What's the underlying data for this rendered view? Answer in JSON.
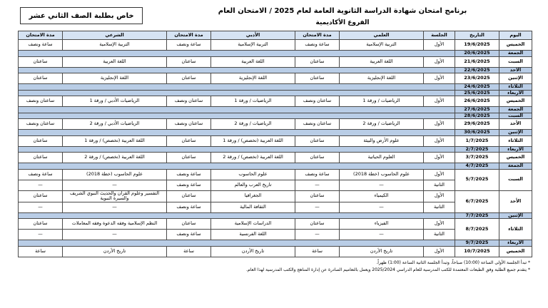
{
  "header": {
    "badge": "خاص بطلبة الصف الثاني عشر",
    "title": "برنامج امتحان شهادة الدراسة الثانوية العامة لعام 2025 / الامتحان العام",
    "subtitle": "الفروع الأكاديمية"
  },
  "table": {
    "columns": [
      "اليوم",
      "التاريخ",
      "الجلسة",
      "العلمي",
      "مدة الامتحان",
      "الأدبي",
      "مدة الامتحان",
      "الشرعي",
      "مدة الامتحان"
    ],
    "rows": [
      {
        "day": "الخميس",
        "date": "19/6/2025",
        "sessions": [
          [
            "الأول",
            "التربية الإسلامية",
            "ساعة ونصف",
            "التربية الإسلامية",
            "ساعة ونصف",
            "التربية الإسلامية",
            "ساعة ونصف"
          ]
        ]
      },
      {
        "day": "الجمعة",
        "date": "20/6/2025",
        "sessions": []
      },
      {
        "day": "السبت",
        "date": "21/6/2025",
        "sessions": [
          [
            "الأول",
            "اللغة العربية",
            "ساعتان",
            "اللغة العربية",
            "ساعتان",
            "اللغة العربية",
            "ساعتان"
          ]
        ]
      },
      {
        "day": "الأحد",
        "date": "22/6/2025",
        "sessions": []
      },
      {
        "day": "الإثنين",
        "date": "23/6/2025",
        "sessions": [
          [
            "الأول",
            "اللغة الإنجليزية",
            "ساعتان",
            "اللغة الإنجليزية",
            "ساعتان",
            "اللغة الإنجليزية",
            "ساعتان"
          ]
        ]
      },
      {
        "day": "الثلاثاء",
        "date": "24/6/2025",
        "sessions": []
      },
      {
        "day": "الأربعاء",
        "date": "25/6/2025",
        "sessions": []
      },
      {
        "day": "الخميس",
        "date": "26/6/2025",
        "sessions": [
          [
            "الأول",
            "الرياضيات / ورقة 1",
            "ساعتان ونصف",
            "الرياضيات / ورقة 1",
            "ساعتان ونصف",
            "الرياضيات الأدبي / ورقة 1",
            "ساعتان ونصف"
          ]
        ]
      },
      {
        "day": "الجمعة",
        "date": "27/6/2025",
        "sessions": []
      },
      {
        "day": "السبت",
        "date": "28/6/2025",
        "sessions": []
      },
      {
        "day": "الأحد",
        "date": "29/6/2025",
        "sessions": [
          [
            "الأول",
            "الرياضيات / ورقة 2",
            "ساعتان ونصف",
            "الرياضيات / ورقة 2",
            "ساعتان ونصف",
            "الرياضيات الأدبي / ورقة 2",
            "ساعتان ونصف"
          ]
        ]
      },
      {
        "day": "الإثنين",
        "date": "30/6/2025",
        "sessions": []
      },
      {
        "day": "الثلاثاء",
        "date": "1/7/2025",
        "sessions": [
          [
            "الأول",
            "علوم الأرض والبيئة",
            "ساعتان",
            "اللغة العربية (تخصص) / ورقة 1",
            "ساعتان",
            "اللغة العربية (تخصص) / ورقة 1",
            "ساعتان"
          ]
        ]
      },
      {
        "day": "الأربعاء",
        "date": "2/7/2025",
        "sessions": []
      },
      {
        "day": "الخميس",
        "date": "3/7/2025",
        "sessions": [
          [
            "الأول",
            "العلوم الحياتية",
            "ساعتان",
            "اللغة العربية (تخصص) / ورقة 2",
            "ساعتان",
            "اللغة العربية (تخصص) / ورقة 2",
            "ساعتان"
          ]
        ]
      },
      {
        "day": "الجمعة",
        "date": "4/7/2025",
        "sessions": []
      },
      {
        "day": "السبت",
        "date": "5/7/2025",
        "sessions": [
          [
            "الأول",
            "علوم الحاسوب (خطة 2018)",
            "ساعة ونصف",
            "علوم الحاسوب",
            "ساعة ونصف",
            "علوم الحاسوب (خطة 2018)",
            "ساعة ونصف"
          ],
          [
            "الثانية",
            "—",
            "—",
            "تاريخ العرب والعالم",
            "ساعة ونصف",
            "—",
            "—"
          ]
        ]
      },
      {
        "day": "الأحد",
        "date": "6/7/2025",
        "sessions": [
          [
            "الأول",
            "الكيمياء",
            "ساعتان",
            "الجغرافيا",
            "ساعتان",
            "التفسير وعلوم القرآن والحديث النبوي الشريف والسيرة النبوية",
            "ساعتان"
          ],
          [
            "الثانية",
            "—",
            "—",
            "الثقافة المالية",
            "ساعة ونصف",
            "—",
            "—"
          ]
        ]
      },
      {
        "day": "الإثنين",
        "date": "7/7/2025",
        "sessions": []
      },
      {
        "day": "الثلاثاء",
        "date": "8/7/2025",
        "sessions": [
          [
            "الأول",
            "الفيزياء",
            "ساعتان",
            "الدراسات الإسلامية",
            "ساعتان",
            "النظم الإسلامية وفقه الدعوة وفقه المعاملات",
            "ساعتان"
          ],
          [
            "الثانية",
            "—",
            "—",
            "اللغة الفرنسية",
            "ساعة ونصف",
            "—",
            "—"
          ]
        ]
      },
      {
        "day": "الأربعاء",
        "date": "9/7/2025",
        "sessions": []
      },
      {
        "day": "الخميس",
        "date": "10/7/2025",
        "sessions": [
          [
            "الأول",
            "تاريخ الأردن",
            "ساعة",
            "تاريخ الأردن",
            "ساعة",
            "تاريخ الأردن",
            "ساعة"
          ]
        ]
      }
    ]
  },
  "notes": [
    "* تبدأ الجلسة الأولى الساعة (10:00) صباحاً، وتبدأ الجلسة الثانية الساعة (1:00) ظهراً.",
    "* يتقدم جميع الطلبة وفق الطبعات المعتمدة للكتب المدرسية للعام الدراسي 2025/2024 ويعمل بالتعاميم الصادرة عن إدارة المناهج والكتب المدرسية لهذا العام."
  ]
}
